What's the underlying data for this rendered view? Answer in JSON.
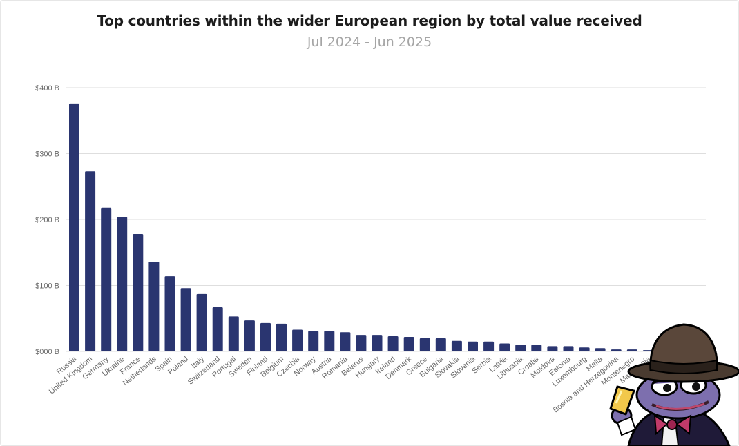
{
  "colors": {
    "bar": "#2a3570",
    "grid": "#dedede",
    "title": "#1c1c1c",
    "subtitle": "#a5a5a5"
  },
  "chart_data": {
    "type": "bar",
    "title": "Top countries within the wider European region by total value received",
    "subtitle": "Jul 2024 - Jun 2025",
    "xlabel": "",
    "ylabel": "",
    "ylim": [
      0,
      400
    ],
    "yticks": [
      0,
      100,
      200,
      300,
      400
    ],
    "ytick_labels": [
      "$000 B",
      "$100 B",
      "$200 B",
      "$300 B",
      "$400 B"
    ],
    "grid": true,
    "categories": [
      "Russia",
      "United Kingdom",
      "Germany",
      "Ukraine",
      "France",
      "Netherlands",
      "Spain",
      "Poland",
      "Italy",
      "Switzerland",
      "Portugal",
      "Sweden",
      "Finland",
      "Belgium",
      "Czechia",
      "Norway",
      "Austria",
      "Romania",
      "Belarus",
      "Hungary",
      "Ireland",
      "Denmark",
      "Greece",
      "Bulgaria",
      "Slovakia",
      "Slovenia",
      "Serbia",
      "Latvia",
      "Lithuania",
      "Croatia",
      "Moldova",
      "Estonia",
      "Luxembourg",
      "Malta",
      "Bosnia and Herzegovina",
      "Montenegro",
      "Macedonia"
    ],
    "values": [
      376,
      273,
      218,
      204,
      178,
      136,
      114,
      96,
      87,
      67,
      53,
      47,
      43,
      42,
      33,
      31,
      31,
      29,
      25,
      25,
      23,
      22,
      20,
      20,
      16,
      15,
      15,
      12,
      10,
      10,
      8,
      8,
      6,
      5,
      3,
      3,
      2
    ]
  }
}
